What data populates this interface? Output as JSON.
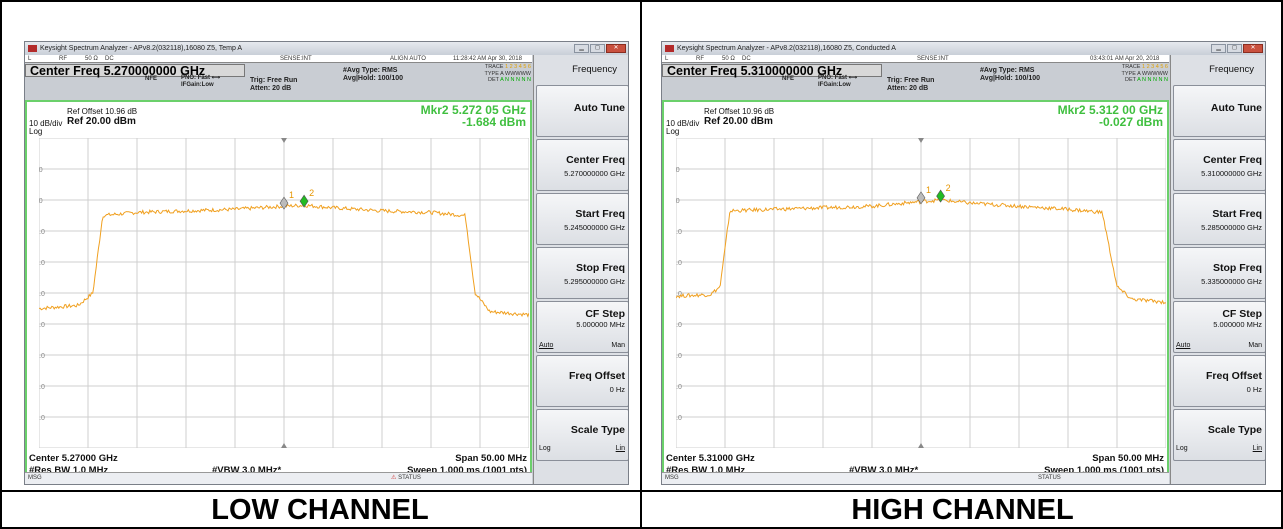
{
  "screens": [
    {
      "window_title": "Keysight Spectrum Analyzer - APv8.2(032118),16080 Z5, Temp A",
      "status_strip": {
        "mode": "L",
        "rf": "RF",
        "impedance": "50 Ω",
        "coupling": "DC",
        "sense": "SENSE:INT",
        "align": "ALIGN AUTO",
        "timestamp": "11:28:42 AM Apr 30, 2018"
      },
      "center_freq_field": "Center Freq 5.270000000 GHz",
      "nfe": "NFE",
      "pno": "PNO: Fast",
      "ifgain": "IFGain:Low",
      "trig": "Trig: Free Run",
      "atten": "Atten: 20 dB",
      "avg_type": "#Avg Type: RMS",
      "avg_hold": "Avg|Hold: 100/100",
      "trace_label": "TRACE",
      "trace_values": "1 2 3 4 5 6",
      "type_label": "TYPE",
      "type_values": "A WWWWW",
      "det_label": "DET",
      "det_values": "A N N N N N",
      "ref_offset": "Ref Offset 10.96 dB",
      "scale": "10 dB/div",
      "ref_level": "Ref 20.00 dBm",
      "log_label": "Log",
      "marker_freq": "Mkr2 5.272 05 GHz",
      "marker_amp": "-1.684 dBm",
      "center_bottom": "Center 5.27000 GHz",
      "span": "Span 50.00 MHz",
      "res_bw": "#Res BW 1.0 MHz",
      "vbw": "#VBW 3.0 MHz*",
      "sweep": "Sweep  1.000 ms (1001 pts)",
      "msg": "MSG",
      "status": "STATUS",
      "softkeys": {
        "header": "Frequency",
        "auto_tune": "Auto Tune",
        "center_freq": "Center Freq",
        "center_freq_val": "5.270000000 GHz",
        "start_freq": "Start Freq",
        "start_freq_val": "5.245000000 GHz",
        "stop_freq": "Stop Freq",
        "stop_freq_val": "5.295000000 GHz",
        "cf_step": "CF Step",
        "cf_step_val": "5.000000 MHz",
        "cf_auto": "Auto",
        "cf_man": "Man",
        "freq_offset": "Freq Offset",
        "freq_offset_val": "0 Hz",
        "scale_type": "Scale Type",
        "scale_log": "Log",
        "scale_lin": "Lin"
      },
      "caption": "LOW CHANNEL",
      "chart_data": {
        "type": "line",
        "xlim": [
          5.245,
          5.295
        ],
        "ylim": [
          -80,
          20
        ],
        "y_ticks": [
          "10.0",
          "0.00",
          "-10.0",
          "-20.0",
          "-30.0",
          "-40.0",
          "-50.0",
          "-60.0",
          "-70.0"
        ],
        "grid": true,
        "line_color": "#f0a020",
        "series": [
          {
            "x": [
              5.245,
              5.249,
              5.2505,
              5.2515,
              5.255,
              5.26,
              5.265,
              5.27,
              5.2721,
              5.275,
              5.28,
              5.285,
              5.2885,
              5.2895,
              5.291,
              5.295
            ],
            "y": [
              -35,
              -34,
              -30,
              -5,
              -4,
              -3.5,
              -3,
              -2,
              -1.7,
              -2.5,
              -3.5,
              -4,
              -5,
              -30,
              -36,
              -37
            ]
          }
        ],
        "markers": [
          {
            "label": "1",
            "x": 5.27,
            "y": -2.3,
            "color": "#bbbbbb"
          },
          {
            "label": "2",
            "x": 5.27205,
            "y": -1.684,
            "color": "#22bb22"
          }
        ]
      }
    },
    {
      "window_title": "Keysight Spectrum Analyzer - APv8.2(032118),16080 Z5, Conducted A",
      "status_strip": {
        "mode": "L",
        "rf": "RF",
        "impedance": "50 Ω",
        "coupling": "DC",
        "sense": "SENSE:INT",
        "align": "",
        "timestamp": "03:43:01 AM Apr 20, 2018"
      },
      "center_freq_field": "Center Freq 5.310000000 GHz",
      "nfe": "NFE",
      "pno": "PNO: Fast",
      "ifgain": "IFGain:Low",
      "trig": "Trig: Free Run",
      "atten": "Atten: 20 dB",
      "avg_type": "#Avg Type: RMS",
      "avg_hold": "Avg|Hold: 100/100",
      "trace_label": "TRACE",
      "trace_values": "1 2 3 4 5 6",
      "type_label": "TYPE",
      "type_values": "A WWWWW",
      "det_label": "DET",
      "det_values": "A N N N N N",
      "ref_offset": "Ref Offset 10.96 dB",
      "scale": "10 dB/div",
      "ref_level": "Ref 20.00 dBm",
      "log_label": "Log",
      "marker_freq": "Mkr2 5.312 00 GHz",
      "marker_amp": "-0.027 dBm",
      "center_bottom": "Center 5.31000 GHz",
      "span": "Span 50.00 MHz",
      "res_bw": "#Res BW 1.0 MHz",
      "vbw": "#VBW 3.0 MHz*",
      "sweep": "Sweep  1.000 ms (1001 pts)",
      "msg": "MSG",
      "status": "STATUS",
      "softkeys": {
        "header": "Frequency",
        "auto_tune": "Auto Tune",
        "center_freq": "Center Freq",
        "center_freq_val": "5.310000000 GHz",
        "start_freq": "Start Freq",
        "start_freq_val": "5.285000000 GHz",
        "stop_freq": "Stop Freq",
        "stop_freq_val": "5.335000000 GHz",
        "cf_step": "CF Step",
        "cf_step_val": "5.000000 MHz",
        "cf_auto": "Auto",
        "cf_man": "Man",
        "freq_offset": "Freq Offset",
        "freq_offset_val": "0 Hz",
        "scale_type": "Scale Type",
        "scale_log": "Log",
        "scale_lin": "Lin"
      },
      "caption": "HIGH CHANNEL",
      "chart_data": {
        "type": "line",
        "xlim": [
          5.285,
          5.335
        ],
        "ylim": [
          -80,
          20
        ],
        "y_ticks": [
          "10.0",
          "0.00",
          "-10.0",
          "-20.0",
          "-30.0",
          "-40.0",
          "-50.0",
          "-60.0",
          "-70.0"
        ],
        "grid": true,
        "line_color": "#f0a020",
        "series": [
          {
            "x": [
              5.285,
              5.2885,
              5.2895,
              5.2905,
              5.295,
              5.3,
              5.305,
              5.31,
              5.312,
              5.315,
              5.32,
              5.325,
              5.3285,
              5.33,
              5.3315,
              5.335
            ],
            "y": [
              -31,
              -30.5,
              -28,
              -3.5,
              -3,
              -2.5,
              -2,
              -0.5,
              0,
              -1,
              -2,
              -3,
              -4,
              -28,
              -32,
              -33
            ]
          }
        ],
        "markers": [
          {
            "label": "1",
            "x": 5.31,
            "y": -0.6,
            "color": "#bbbbbb"
          },
          {
            "label": "2",
            "x": 5.312,
            "y": -0.027,
            "color": "#22bb22"
          }
        ]
      }
    }
  ]
}
